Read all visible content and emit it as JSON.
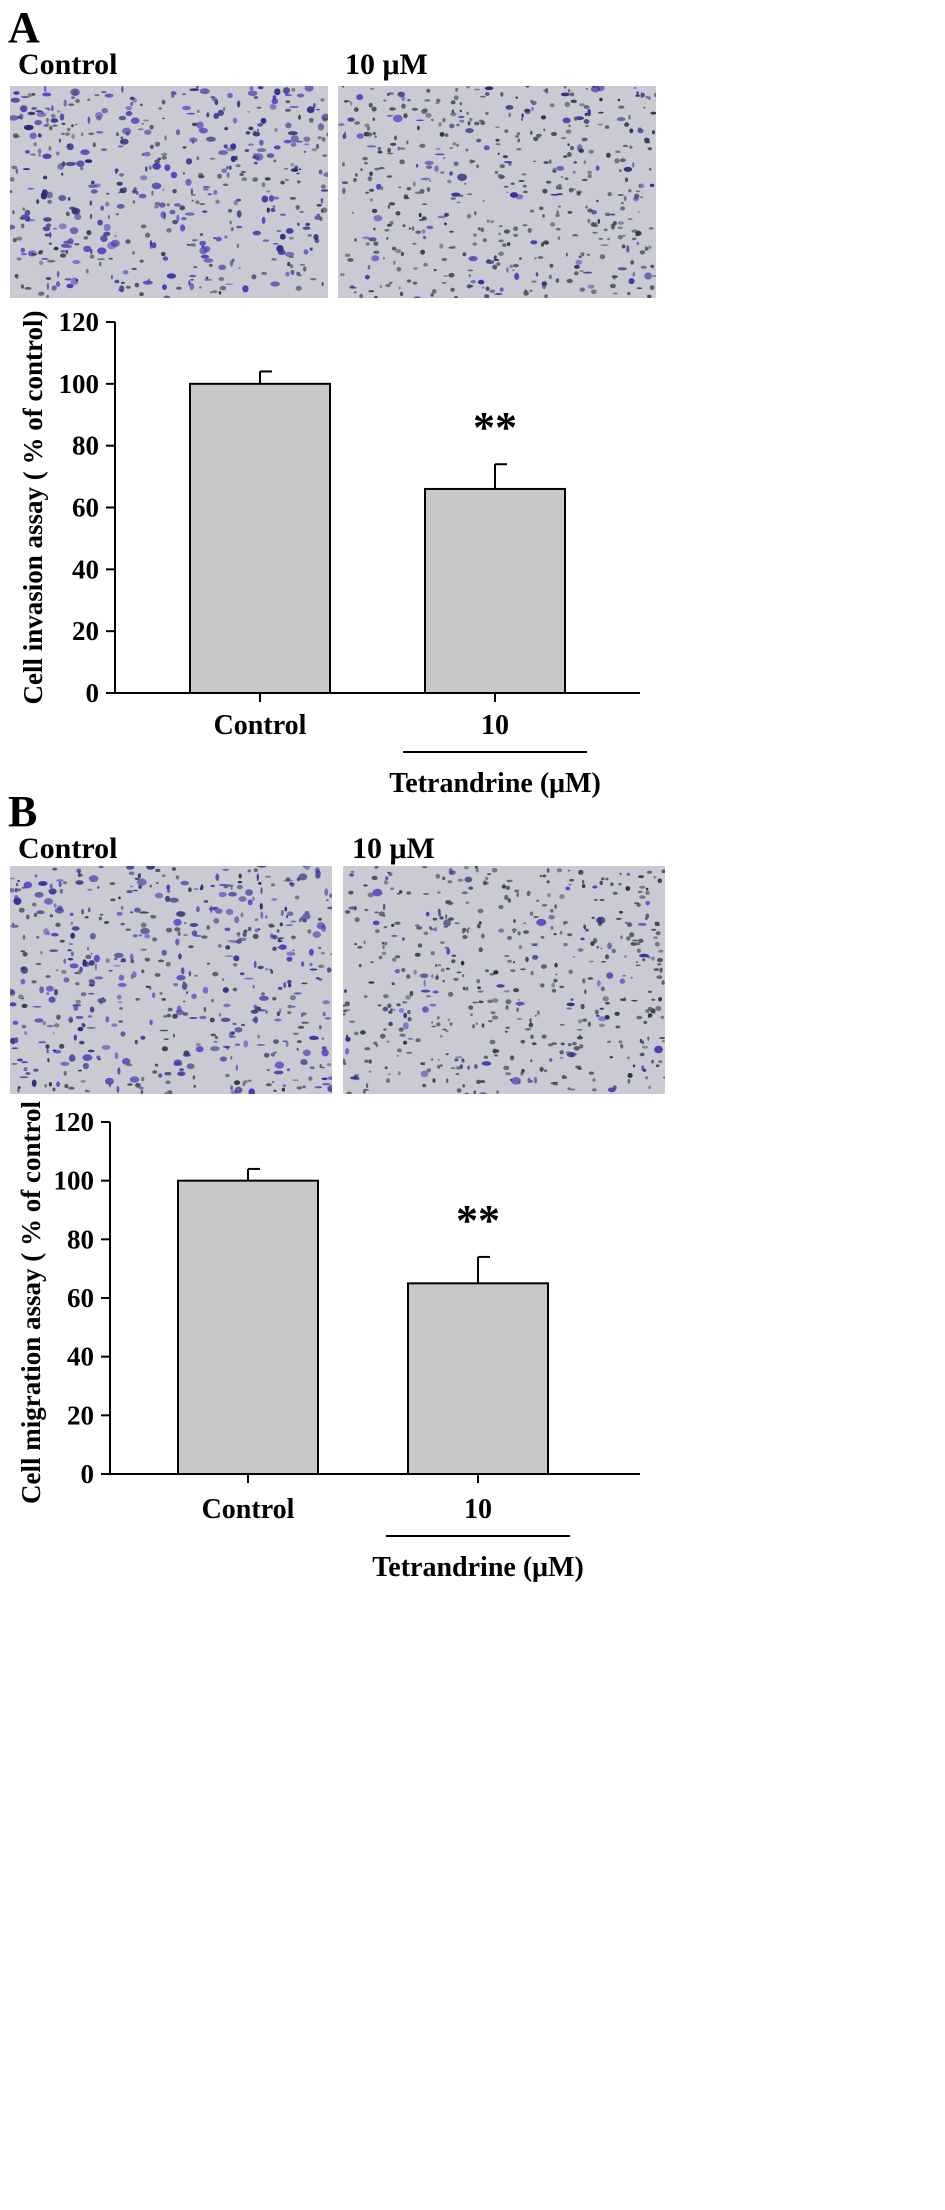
{
  "panels": [
    {
      "letter": "A",
      "image_labels": [
        "Control",
        "10 μM"
      ],
      "chart_data": {
        "type": "bar",
        "categories": [
          "Control",
          "10"
        ],
        "values": [
          100,
          66
        ],
        "errors": [
          4,
          8
        ],
        "significance": [
          "",
          "**"
        ],
        "ylabel": "Cell invasion assay ( % of control)",
        "xgroup_label": "Tetrandrine (μM)",
        "ylim": [
          0,
          120
        ],
        "yticks": [
          0,
          20,
          40,
          60,
          80,
          100,
          120
        ],
        "grid": false,
        "colors": {
          "bar": "#c8c8c8",
          "axis": "#000000"
        }
      }
    },
    {
      "letter": "B",
      "image_labels": [
        "Control",
        "10 μM"
      ],
      "chart_data": {
        "type": "bar",
        "categories": [
          "Control",
          "10"
        ],
        "values": [
          100,
          65
        ],
        "errors": [
          4,
          9
        ],
        "significance": [
          "",
          "**"
        ],
        "ylabel": "Cell migration assay ( % of control)",
        "xgroup_label": "Tetrandrine (μM)",
        "ylim": [
          0,
          120
        ],
        "yticks": [
          0,
          20,
          40,
          60,
          80,
          100,
          120
        ],
        "grid": false,
        "colors": {
          "bar": "#c8c8c8",
          "axis": "#000000"
        }
      }
    }
  ]
}
